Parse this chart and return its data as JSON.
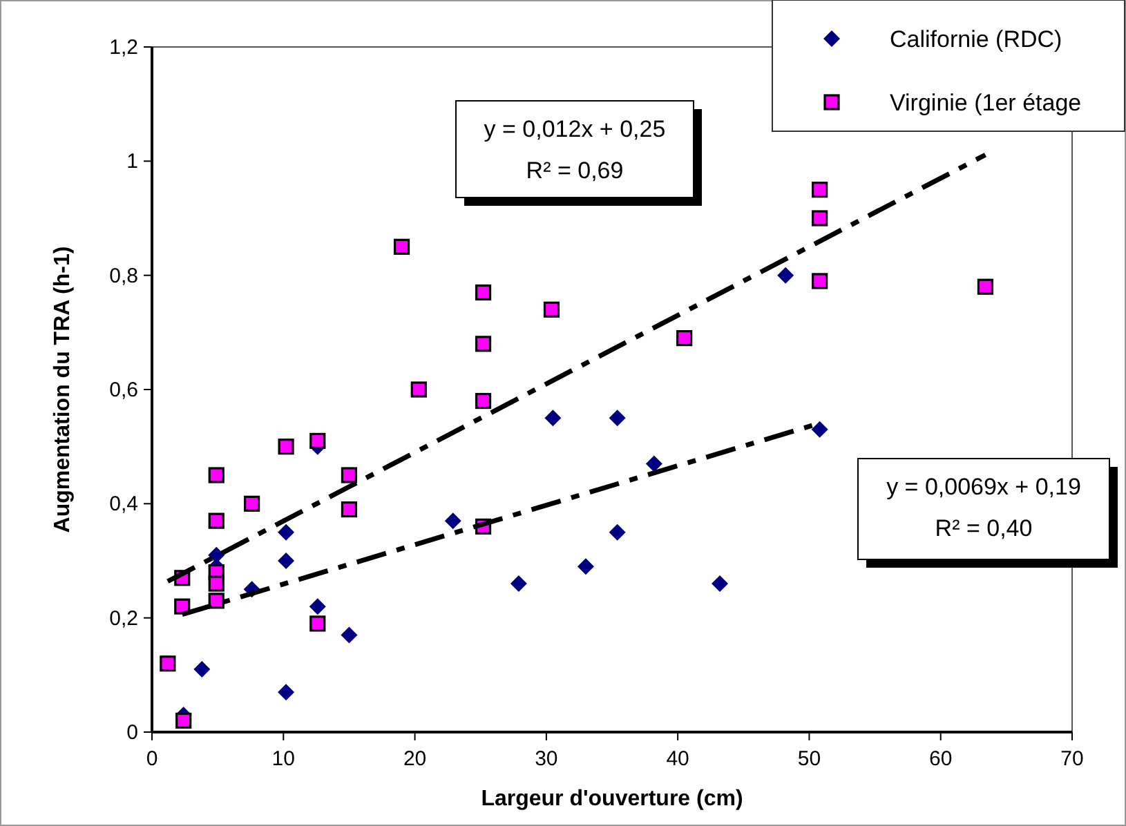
{
  "chart_data": {
    "type": "scatter",
    "xlabel": "Largeur d'ouverture (cm)",
    "ylabel": "Augmentation du TRA (h-1)",
    "xlim": [
      0,
      70
    ],
    "xticks": [
      0,
      10,
      20,
      30,
      40,
      50,
      60,
      70
    ],
    "ylim": [
      0,
      1.2
    ],
    "yticks": [
      0,
      {
        "value": 0.2,
        "label": "0,2"
      },
      {
        "value": 0.4,
        "label": "0,4"
      },
      {
        "value": 0.6,
        "label": "0,6"
      },
      {
        "value": 0.8,
        "label": "0,8"
      },
      1,
      {
        "value": 1.2,
        "label": "1,2"
      }
    ],
    "legend": "top right",
    "grid": false,
    "annotations": [
      "y = 0,012x + 0,25\nR² = 0,69",
      "y = 0,0069x + 0,19\nR² = 0,40"
    ],
    "series": [
      {
        "name": "Californie (RDC)",
        "color": "#000080",
        "marker": "diamond",
        "x": [
          2.4,
          3.8,
          4.9,
          4.9,
          7.6,
          10.2,
          10.2,
          10.2,
          12.6,
          12.6,
          15.0,
          22.9,
          27.9,
          30.5,
          33.0,
          35.4,
          35.4,
          38.2,
          43.2,
          48.2,
          50.8
        ],
        "values": [
          0.03,
          0.11,
          0.31,
          0.29,
          0.25,
          0.35,
          0.3,
          0.07,
          0.5,
          0.22,
          0.17,
          0.37,
          0.26,
          0.55,
          0.29,
          0.55,
          0.35,
          0.47,
          0.26,
          0.8,
          0.53
        ]
      },
      {
        "name": "Virginie (1er étage",
        "color": "#ff00ff",
        "marker": "square",
        "x": [
          1.2,
          2.4,
          2.3,
          2.3,
          4.9,
          4.9,
          4.9,
          4.9,
          4.9,
          7.6,
          10.2,
          12.6,
          12.6,
          15.0,
          15.0,
          19.0,
          20.3,
          25.2,
          25.2,
          25.2,
          25.2,
          30.4,
          40.5,
          50.8,
          50.8,
          50.8,
          63.4
        ],
        "values": [
          0.12,
          0.02,
          0.22,
          0.27,
          0.45,
          0.37,
          0.28,
          0.26,
          0.23,
          0.4,
          0.5,
          0.51,
          0.19,
          0.45,
          0.39,
          0.85,
          0.6,
          0.77,
          0.68,
          0.58,
          0.36,
          0.74,
          0.69,
          0.95,
          0.9,
          0.79,
          0.78
        ]
      },
      {
        "type": "line",
        "color": "#000000",
        "line_style": "dashed",
        "x": [
          1.2,
          63.4
        ],
        "values": [
          0.264,
          1.011
        ]
      },
      {
        "type": "line",
        "color": "#000000",
        "line_style": "dashed",
        "x": [
          2.3,
          50.8
        ],
        "values": [
          0.206,
          0.541
        ]
      }
    ]
  }
}
